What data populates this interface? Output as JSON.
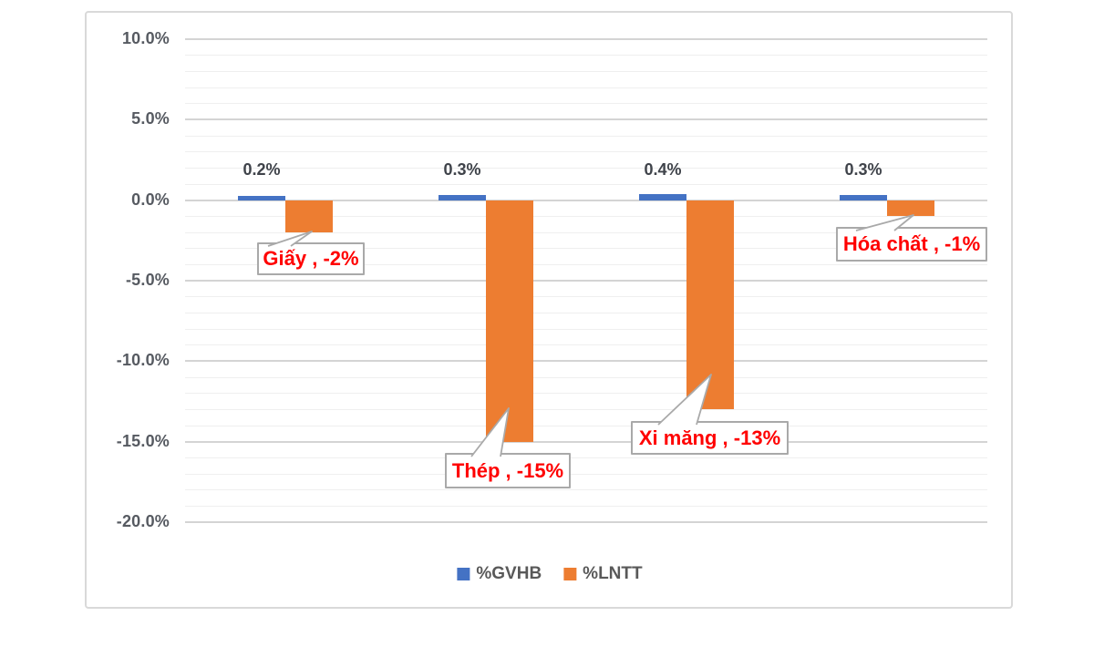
{
  "chart_data": {
    "type": "bar",
    "title": "",
    "categories": [
      "Giấy",
      "Thép",
      "Xi măng",
      "Hóa chất"
    ],
    "series": [
      {
        "name": "%GVHB",
        "color": "#4472C4",
        "values": [
          0.2,
          0.3,
          0.4,
          0.3
        ],
        "data_labels": [
          "0.2%",
          "0.3%",
          "0.4%",
          "0.3%"
        ]
      },
      {
        "name": "%LNTT",
        "color": "#ED7D31",
        "values": [
          -2,
          -15,
          -13,
          -1
        ]
      }
    ],
    "annotations": [
      {
        "target": "Giấy",
        "text": "Giấy , -2%"
      },
      {
        "target": "Thép",
        "text": "Thép , -15%"
      },
      {
        "target": "Xi măng",
        "text": "Xi măng , -13%"
      },
      {
        "target": "Hóa chất",
        "text": "Hóa chất , -1%"
      }
    ],
    "y_axis": {
      "ylim": [
        -20,
        10
      ],
      "major_step": 5,
      "minor_step": 1,
      "tick_labels": [
        "10.0%",
        "5.0%",
        "0.0%",
        "-5.0%",
        "-10.0%",
        "-15.0%",
        "-20.0%"
      ],
      "tick_values": [
        10,
        5,
        0,
        -5,
        -10,
        -15,
        -20
      ]
    },
    "legend": {
      "position": "bottom-center",
      "entries": [
        {
          "label": "%GVHB",
          "color": "#4472C4"
        },
        {
          "label": "%LNTT",
          "color": "#ED7D31"
        }
      ]
    },
    "grid": {
      "major": true,
      "minor": true
    }
  },
  "colors": {
    "series_blue": "#4472C4",
    "series_orange": "#ED7D31",
    "annotation_text": "#ff0000",
    "axis_text": "#565a61",
    "data_label_text": "#3f434a",
    "legend_text": "#595959",
    "gridline_major": "#d4d4d4",
    "gridline_minor": "#efefef",
    "chart_border": "#d9d9d9",
    "callout_border": "#a9a9a9",
    "background": "#ffffff"
  }
}
